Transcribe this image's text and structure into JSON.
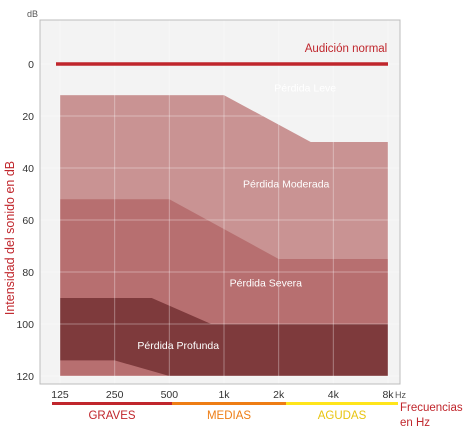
{
  "chart_data": {
    "type": "area",
    "ylabel": "Intensidad del sonido en dB",
    "y_unit": "dB",
    "x_unit": "Hz",
    "xlabel": "Frecuencias en Hz",
    "xlabel_lines": [
      "Frecuencias",
      "en Hz"
    ],
    "x_scale": "log2",
    "y_axis_inverted": true,
    "ylim": [
      0,
      120
    ],
    "xlim": [
      125,
      8000
    ],
    "x_ticks": [
      125,
      250,
      500,
      1000,
      2000,
      4000,
      8000
    ],
    "x_tick_labels": [
      "125",
      "250",
      "500",
      "1k",
      "2k",
      "4k",
      "8k"
    ],
    "y_ticks": [
      0,
      20,
      40,
      60,
      80,
      100,
      120
    ],
    "y_tick_labels": [
      "0",
      "20",
      "40",
      "60",
      "80",
      "100",
      "120"
    ],
    "grid": true,
    "normal_hearing": {
      "label": "Audición normal",
      "y": 0,
      "color": "#c0262c"
    },
    "zones": [
      {
        "name": "Pérdida Leve",
        "color": "#dcbbbb",
        "top": [
          [
            125,
            12
          ],
          [
            1000,
            12
          ],
          [
            3000,
            30
          ],
          [
            8000,
            30
          ]
        ],
        "label_at": [
          2800,
          9
        ]
      },
      {
        "name": "Pérdida Moderada",
        "color": "#c99393",
        "top": [
          [
            125,
            12
          ],
          [
            1000,
            12
          ],
          [
            3000,
            30
          ],
          [
            8000,
            30
          ]
        ],
        "label_at": [
          2200,
          46
        ]
      },
      {
        "name": "Pérdida Severa",
        "color": "#b76f70",
        "top": [
          [
            125,
            52
          ],
          [
            500,
            52
          ],
          [
            2000,
            75
          ],
          [
            8000,
            75
          ]
        ],
        "label_at": [
          1700,
          84
        ]
      },
      {
        "name": "Pérdida Profunda",
        "color": "#7e3a3c",
        "top": [
          [
            125,
            90
          ],
          [
            400,
            90
          ],
          [
            850,
            100
          ],
          [
            8000,
            100
          ]
        ],
        "bottom": [
          [
            125,
            114
          ],
          [
            250,
            114
          ],
          [
            500,
            120
          ],
          [
            8000,
            120
          ]
        ],
        "label_at": [
          560,
          108
        ]
      }
    ],
    "frequency_bands": [
      {
        "label": "GRAVES",
        "from": 125,
        "to": 500,
        "color": "#c0262c"
      },
      {
        "label": "MEDIAS",
        "from": 500,
        "to": 2000,
        "color": "#ee7d14"
      },
      {
        "label": "AGUDAS",
        "from": 2000,
        "to": 8000,
        "color": "#ffe51b"
      }
    ],
    "band_label_colors": {
      "GRAVES": "#c0262c",
      "MEDIAS": "#ee7d14",
      "AGUDAS": "#e8c40f"
    }
  }
}
